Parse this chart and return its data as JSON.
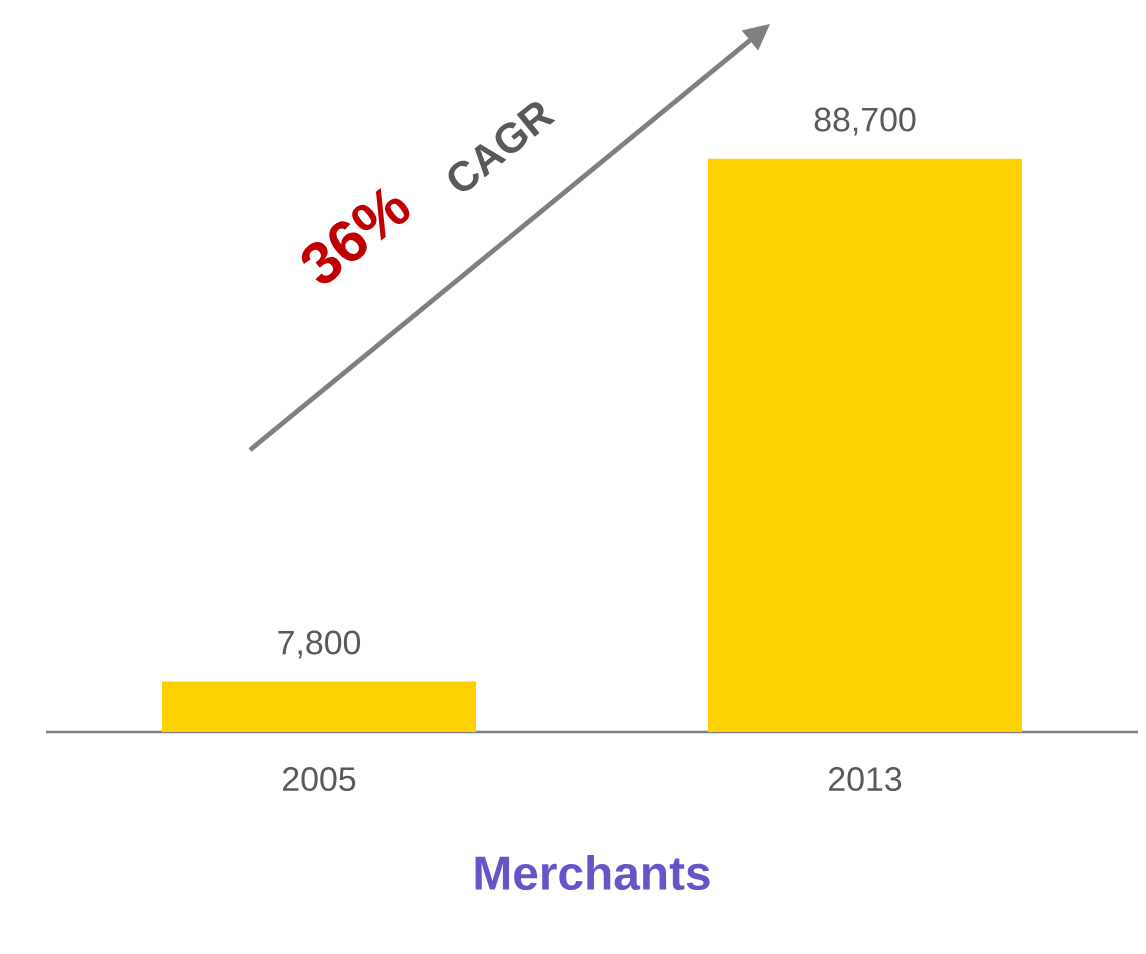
{
  "chart_data": {
    "type": "bar",
    "xlabel": "Merchants",
    "categories": [
      "2005",
      "2013"
    ],
    "values": [
      7800,
      88700
    ],
    "color": "#ffd100",
    "value_labels": [
      "7,800",
      "88,700"
    ],
    "annotations": [
      "36%",
      "CAGR"
    ],
    "grid": false
  }
}
